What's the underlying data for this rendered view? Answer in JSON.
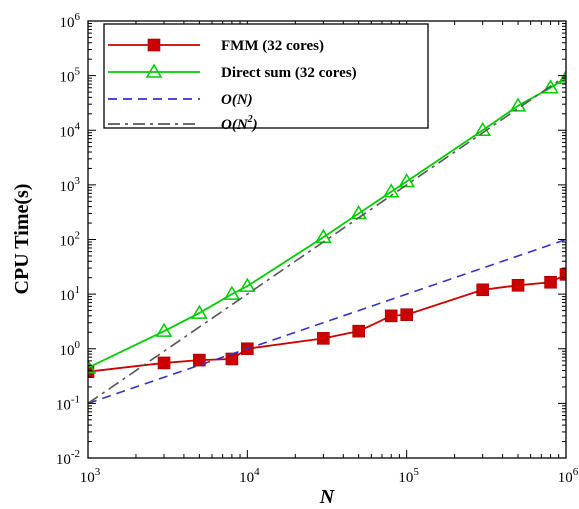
{
  "chart_data": {
    "type": "line",
    "title": "",
    "xlabel": "N",
    "ylabel": "CPU Time(s)",
    "xscale": "log",
    "yscale": "log",
    "xlim": [
      1000,
      1000000
    ],
    "ylim": [
      0.01,
      1000000
    ],
    "x_ticks": [
      {
        "value": 1000,
        "base": "10",
        "exp": "3"
      },
      {
        "value": 10000,
        "base": "10",
        "exp": "4"
      },
      {
        "value": 100000,
        "base": "10",
        "exp": "5"
      },
      {
        "value": 1000000,
        "base": "10",
        "exp": "6"
      }
    ],
    "y_ticks": [
      {
        "value": 0.01,
        "base": "10",
        "exp": "-2"
      },
      {
        "value": 0.1,
        "base": "10",
        "exp": "-1"
      },
      {
        "value": 1,
        "base": "10",
        "exp": "0"
      },
      {
        "value": 10,
        "base": "10",
        "exp": "1"
      },
      {
        "value": 100,
        "base": "10",
        "exp": "2"
      },
      {
        "value": 1000,
        "base": "10",
        "exp": "3"
      },
      {
        "value": 10000,
        "base": "10",
        "exp": "4"
      },
      {
        "value": 100000,
        "base": "10",
        "exp": "5"
      },
      {
        "value": 1000000,
        "base": "10",
        "exp": "6"
      }
    ],
    "grid": false,
    "legend_position": "top-left",
    "series": [
      {
        "name": "FMM (32 cores)",
        "color": "#cc0000",
        "marker": "square",
        "style": "solid",
        "points": [
          [
            1000,
            0.38
          ],
          [
            3000,
            0.55
          ],
          [
            5000,
            0.62
          ],
          [
            8000,
            0.65
          ],
          [
            10000,
            1.0
          ],
          [
            30000,
            1.55
          ],
          [
            50000,
            2.1
          ],
          [
            80000,
            4.0
          ],
          [
            100000,
            4.2
          ],
          [
            300000,
            12.0
          ],
          [
            500000,
            14.5
          ],
          [
            800000,
            16.5
          ],
          [
            1000000,
            23.0
          ]
        ]
      },
      {
        "name": "Direct sum (32 cores)",
        "color": "#00cc00",
        "marker": "triangle",
        "style": "solid",
        "points": [
          [
            1000,
            0.45
          ],
          [
            3000,
            2.1
          ],
          [
            5000,
            4.5
          ],
          [
            8000,
            10.0
          ],
          [
            10000,
            14.0
          ],
          [
            30000,
            110.0
          ],
          [
            50000,
            300.0
          ],
          [
            80000,
            750.0
          ],
          [
            100000,
            1150.0
          ],
          [
            300000,
            10000.0
          ],
          [
            500000,
            28000.0
          ],
          [
            800000,
            60000.0
          ],
          [
            1000000,
            90000.0
          ]
        ]
      },
      {
        "name": "O(N)",
        "name_parts": {
          "base": "O(N)",
          "sup": ""
        },
        "color": "#3333cc",
        "marker": "none",
        "style": "dashed",
        "points": [
          [
            1000,
            0.1
          ],
          [
            1000000,
            100.0
          ]
        ]
      },
      {
        "name": "O(N2)",
        "name_parts": {
          "base": "O(N",
          "sup": "2",
          "tail": ")"
        },
        "color": "#555555",
        "marker": "none",
        "style": "dashdot",
        "points": [
          [
            1000,
            0.1
          ],
          [
            1000000,
            100000.0
          ]
        ]
      }
    ]
  }
}
